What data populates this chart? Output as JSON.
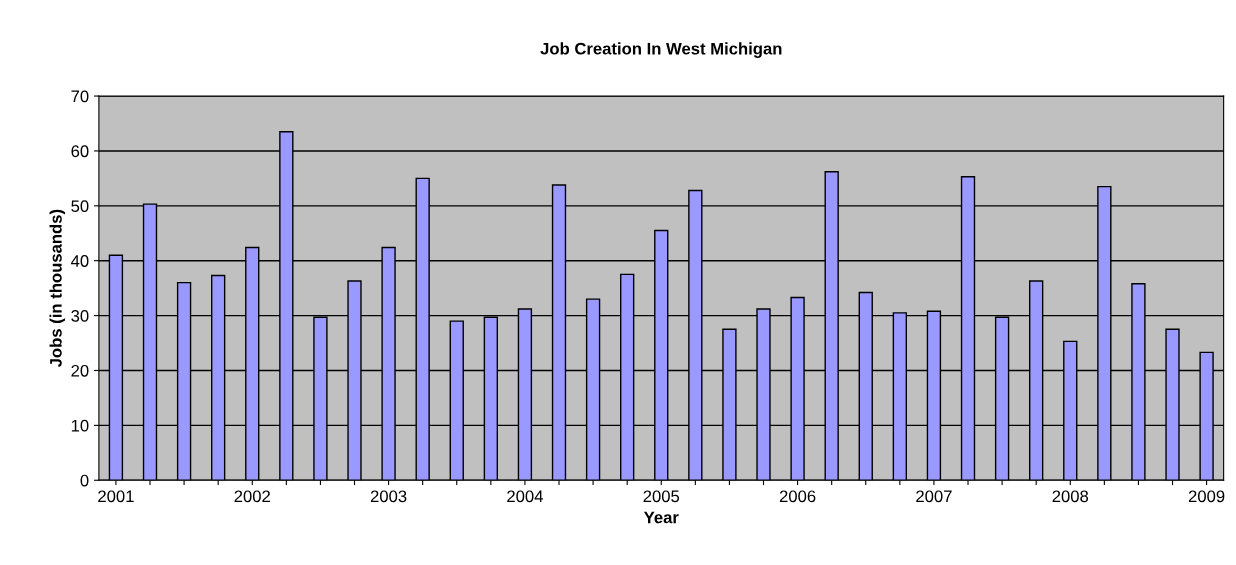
{
  "chart_data": {
    "type": "bar",
    "title": "Job Creation In West Michigan",
    "xlabel": "Year",
    "ylabel": "Jobs (in thousands)",
    "categories": [
      "2001",
      null,
      null,
      null,
      "2002",
      null,
      null,
      null,
      "2003",
      null,
      null,
      null,
      "2004",
      null,
      null,
      null,
      "2005",
      null,
      null,
      null,
      "2006",
      null,
      null,
      null,
      "2007",
      null,
      null,
      null,
      "2008",
      null,
      null,
      null,
      "2009"
    ],
    "values": [
      41,
      50.3,
      36,
      37.3,
      42.4,
      63.5,
      29.7,
      36.3,
      42.4,
      55,
      29,
      29.7,
      31.2,
      53.8,
      33,
      37.5,
      45.5,
      52.8,
      27.5,
      31.2,
      33.3,
      56.2,
      34.2,
      30.5,
      30.8,
      55.3,
      29.7,
      36.3,
      25.3,
      53.5,
      35.8,
      27.5,
      23.3
    ],
    "color": "#9999ff",
    "ylim": [
      0,
      70
    ],
    "yticks": [
      0,
      10,
      20,
      30,
      40,
      50,
      60,
      70
    ],
    "grid": "y",
    "legend": false
  }
}
